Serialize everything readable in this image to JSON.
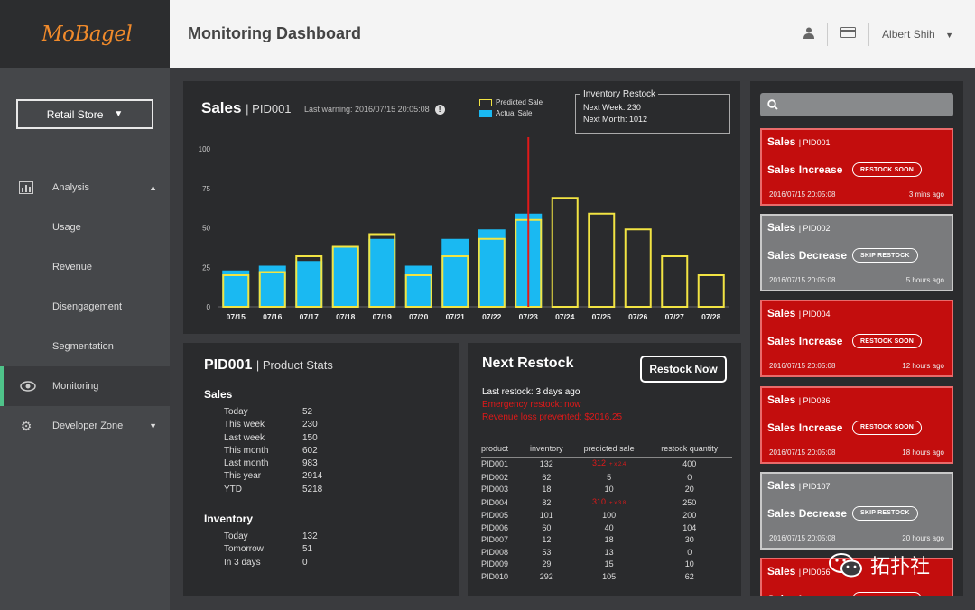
{
  "app": {
    "logo": "MoBagel",
    "page_title": "Monitoring Dashboard",
    "user_name": "Albert Shih"
  },
  "sidebar": {
    "store_select": "Retail Store",
    "items": [
      {
        "label": "Analysis",
        "icon": "bar-chart-icon"
      },
      {
        "label": "Usage"
      },
      {
        "label": "Revenue"
      },
      {
        "label": "Disengagement"
      },
      {
        "label": "Segmentation"
      },
      {
        "label": "Monitoring",
        "icon": "eye-icon"
      },
      {
        "label": "Developer Zone",
        "icon": "gear-icon"
      }
    ]
  },
  "sales": {
    "title": "Sales",
    "pid": "PID001",
    "last_warning": "Last warning: 2016/07/15 20:05:08",
    "legend_predicted": "Predicted Sale",
    "legend_actual": "Actual Sale",
    "inventory_restock": {
      "label": "Inventory Restock",
      "next_week": "Next Week: 230",
      "next_month": "Next Month: 1012"
    }
  },
  "chart_data": {
    "type": "bar",
    "categories": [
      "07/15",
      "07/16",
      "07/17",
      "07/18",
      "07/19",
      "07/20",
      "07/21",
      "07/22",
      "07/23",
      "07/24",
      "07/25",
      "07/26",
      "07/27",
      "07/28"
    ],
    "series": [
      {
        "name": "Predicted Sale",
        "values": [
          20,
          22,
          32,
          38,
          46,
          20,
          32,
          43,
          55,
          69,
          59,
          49,
          32,
          20
        ]
      },
      {
        "name": "Actual Sale",
        "values": [
          23,
          26,
          29,
          38,
          43,
          26,
          43,
          49,
          59,
          null,
          null,
          null,
          null,
          null
        ]
      }
    ],
    "ylim": [
      0,
      100
    ],
    "yticks": [
      0,
      25,
      50,
      75,
      100
    ],
    "marker_category": "07/23",
    "colors": {
      "predicted": "#f2e443",
      "actual": "#1ab9f2",
      "marker": "#e01919"
    }
  },
  "stats": {
    "pid": "PID001",
    "subtitle": "Product Stats",
    "sales_heading": "Sales",
    "sales": [
      {
        "k": "Today",
        "v": "52"
      },
      {
        "k": "This week",
        "v": "230"
      },
      {
        "k": "Last week",
        "v": "150"
      },
      {
        "k": "This month",
        "v": "602"
      },
      {
        "k": "Last month",
        "v": "983"
      },
      {
        "k": "This year",
        "v": "2914"
      },
      {
        "k": "YTD",
        "v": "5218"
      }
    ],
    "inventory_heading": "Inventory",
    "inventory": [
      {
        "k": "Today",
        "v": "132"
      },
      {
        "k": "Tomorrow",
        "v": "51"
      },
      {
        "k": "In 3 days",
        "v": "0"
      }
    ]
  },
  "restock": {
    "title": "Next Restock",
    "button": "Restock Now",
    "last_restock": "Last restock: 3 days ago",
    "emergency": "Emergency restock: now",
    "revenue_loss": "Revenue loss prevented: $2016.25",
    "headers": [
      "product",
      "inventory",
      "predicted sale",
      "restock quantity"
    ],
    "rows": [
      [
        "PID001",
        "132",
        "312",
        "400"
      ],
      [
        "PID002",
        "62",
        "5",
        "0"
      ],
      [
        "PID003",
        "18",
        "10",
        "20"
      ],
      [
        "PID004",
        "82",
        "310",
        "250"
      ],
      [
        "PID005",
        "101",
        "100",
        "200"
      ],
      [
        "PID006",
        "60",
        "40",
        "104"
      ],
      [
        "PID007",
        "12",
        "18",
        "30"
      ],
      [
        "PID008",
        "53",
        "13",
        "0"
      ],
      [
        "PID009",
        "29",
        "15",
        "10"
      ],
      [
        "PID010",
        "292",
        "105",
        "62"
      ]
    ],
    "flag": "+ x 2.4",
    "flag4": "+ x 3.8"
  },
  "alerts": [
    {
      "title": "Sales",
      "pid": "PID001",
      "type": "Sales Increase",
      "pill": "RESTOCK SOON",
      "ts": "2016/07/15 20:05:08",
      "ago": "3 mins ago",
      "style": "red"
    },
    {
      "title": "Sales",
      "pid": "PID002",
      "type": "Sales Decrease",
      "pill": "SKIP RESTOCK",
      "ts": "2016/07/15 20:05:08",
      "ago": "5 hours ago",
      "style": "gray"
    },
    {
      "title": "Sales",
      "pid": "PID004",
      "type": "Sales Increase",
      "pill": "RESTOCK SOON",
      "ts": "2016/07/15 20:05:08",
      "ago": "12 hours ago",
      "style": "red"
    },
    {
      "title": "Sales",
      "pid": "PID036",
      "type": "Sales Increase",
      "pill": "RESTOCK SOON",
      "ts": "2016/07/15 20:05:08",
      "ago": "18 hours ago",
      "style": "red"
    },
    {
      "title": "Sales",
      "pid": "PID107",
      "type": "Sales Decrease",
      "pill": "SKIP RESTOCK",
      "ts": "2016/07/15 20:05:08",
      "ago": "20 hours ago",
      "style": "gray"
    },
    {
      "title": "Sales",
      "pid": "PID056",
      "type": "Sales Increase",
      "pill": "RESTOCK SOON",
      "ts": "",
      "ago": "",
      "style": "red"
    }
  ],
  "watermark": "拓扑社"
}
